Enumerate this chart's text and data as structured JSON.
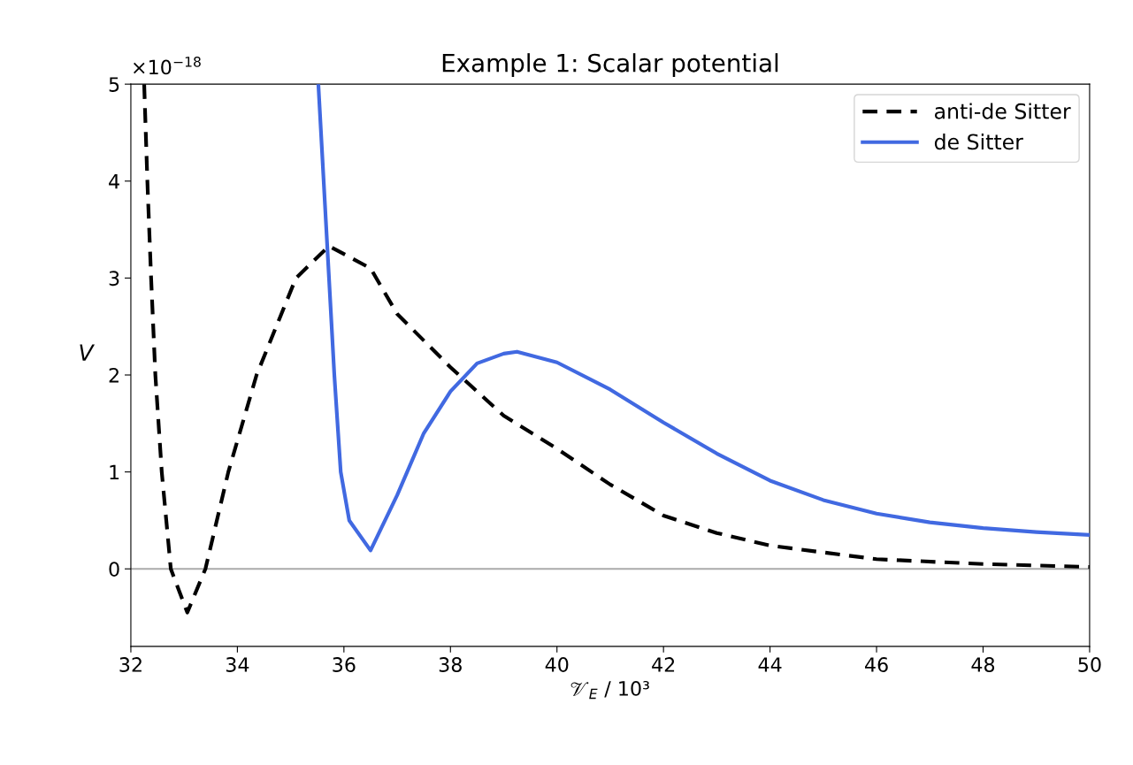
{
  "chart_data": {
    "type": "line",
    "title": "Example 1: Scalar potential",
    "xlabel": "𝒱$_{E}$ / 10³",
    "ylabel": "V",
    "annotations": [
      "×10$^{−18}$"
    ],
    "xlim": [
      32,
      50
    ],
    "xticks": [
      32,
      34,
      36,
      38,
      40,
      42,
      44,
      46,
      48,
      50
    ],
    "ylim": [
      -0.8,
      5
    ],
    "yticks": [
      0,
      1,
      2,
      3,
      4,
      5
    ],
    "grid": false,
    "legend": "top right",
    "ref_lines": [
      {
        "axis": "y",
        "value": 0,
        "color": "#aaaaaa",
        "line_style": "solid"
      }
    ],
    "series": [
      {
        "name": "anti-de Sitter",
        "color": "#000000",
        "line_style": "dashed",
        "x": [
          32.25,
          32.31,
          32.38,
          32.46,
          32.58,
          32.75,
          33.06,
          33.4,
          33.83,
          34.36,
          35.1,
          35.72,
          36.5,
          37,
          38,
          39,
          40,
          41,
          42,
          43,
          44,
          46,
          48,
          50
        ],
        "values": [
          5,
          4,
          3,
          2,
          1,
          0,
          -0.45,
          0,
          1,
          2,
          3,
          3.33,
          3.1,
          2.63,
          2.08,
          1.58,
          1.24,
          0.87,
          0.55,
          0.37,
          0.24,
          0.1,
          0.05,
          0.02
        ]
      },
      {
        "name": "de Sitter",
        "color": "#4169e1",
        "line_style": "solid",
        "x": [
          35.52,
          35.72,
          35.82,
          35.94,
          36.1,
          36.5,
          37,
          37.5,
          38,
          38.5,
          39,
          39.25,
          40,
          41,
          42,
          43,
          44,
          45,
          46,
          47,
          48,
          49,
          50
        ],
        "values": [
          5,
          3,
          2,
          1,
          0.5,
          0.19,
          0.76,
          1.4,
          1.83,
          2.12,
          2.22,
          2.24,
          2.13,
          1.85,
          1.51,
          1.19,
          0.91,
          0.71,
          0.57,
          0.48,
          0.42,
          0.38,
          0.35
        ]
      }
    ]
  }
}
